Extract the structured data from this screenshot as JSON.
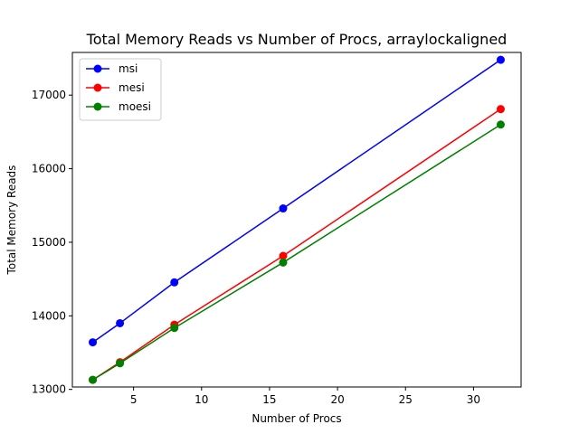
{
  "chart_data": {
    "type": "line",
    "title": "Total Memory Reads vs Number of Procs, arraylockaligned",
    "xlabel": "Number of Procs",
    "ylabel": "Total Memory Reads",
    "x": [
      2,
      4,
      8,
      16,
      32
    ],
    "xlim": [
      0.5,
      33.5
    ],
    "ylim": [
      13033,
      17580
    ],
    "xticks": [
      5,
      10,
      15,
      20,
      25,
      30
    ],
    "yticks": [
      13000,
      14000,
      15000,
      16000,
      17000
    ],
    "grid": false,
    "legend_position": "top-left",
    "series": [
      {
        "name": "msi",
        "color": "#0000ff",
        "values": [
          13640,
          13900,
          14455,
          15460,
          17480
        ]
      },
      {
        "name": "mesi",
        "color": "#ff0000",
        "values": [
          13130,
          13370,
          13880,
          14815,
          16810
        ]
      },
      {
        "name": "moesi",
        "color": "#008000",
        "values": [
          13130,
          13355,
          13835,
          14725,
          16600
        ]
      }
    ]
  }
}
